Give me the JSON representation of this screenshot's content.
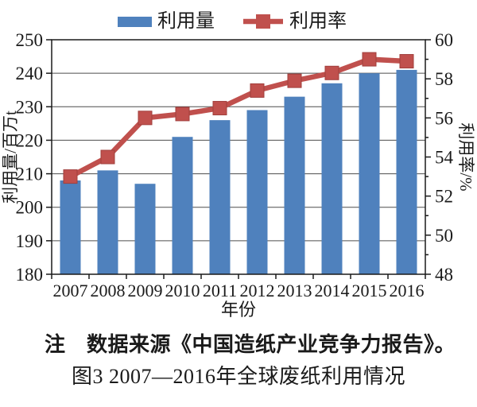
{
  "figure": {
    "note": "注　数据来源《中国造纸产业竞争力报告》。",
    "caption": "图3 2007—2016年全球废纸利用情况"
  },
  "chart_data": {
    "type": "combo",
    "title": "",
    "categories": [
      "2007",
      "2008",
      "2009",
      "2010",
      "2011",
      "2012",
      "2013",
      "2014",
      "2015",
      "2016"
    ],
    "xlabel": "年份",
    "grid": true,
    "legend_position": "top",
    "left_axis": {
      "label": "利用量/百万t",
      "min": 180,
      "max": 250,
      "step": 10
    },
    "right_axis": {
      "label": "利用率/%",
      "min": 48,
      "max": 60,
      "step": 2,
      "minor_step": 1
    },
    "series": [
      {
        "name": "利用量",
        "type": "bar",
        "axis": "left",
        "unit": "百万t",
        "color": "#4f81bd",
        "values": [
          208,
          211,
          207,
          221,
          226,
          229,
          233,
          237,
          240,
          241
        ]
      },
      {
        "name": "利用率",
        "type": "line",
        "axis": "right",
        "unit": "%",
        "color": "#c0504d",
        "marker": "square",
        "values": [
          53.0,
          54.0,
          56.0,
          56.2,
          56.5,
          57.4,
          57.9,
          58.3,
          59.0,
          58.9
        ]
      }
    ],
    "colors": {
      "bar": "#4f81bd",
      "line": "#c0504d",
      "marker_border": "#a13f3c",
      "grid": "#4d4d4d",
      "frame": "#1a1a1a",
      "text": "#1a1a1a"
    }
  }
}
